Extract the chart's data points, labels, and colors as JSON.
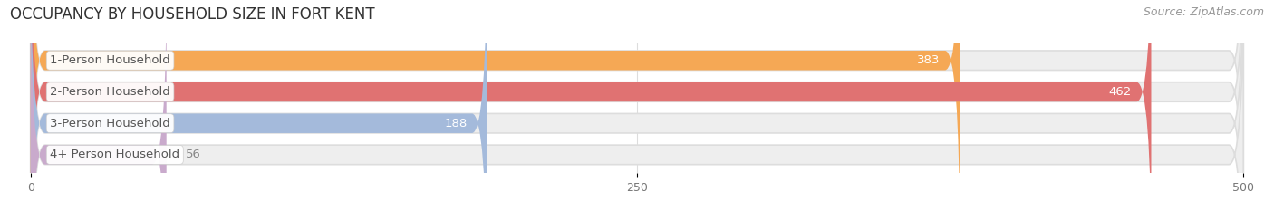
{
  "title": "OCCUPANCY BY HOUSEHOLD SIZE IN FORT KENT",
  "source": "Source: ZipAtlas.com",
  "categories": [
    "1-Person Household",
    "2-Person Household",
    "3-Person Household",
    "4+ Person Household"
  ],
  "values": [
    383,
    462,
    188,
    56
  ],
  "bar_colors": [
    "#F5A855",
    "#E07272",
    "#A4BADB",
    "#C9AACC"
  ],
  "bar_bg_color": "#EEEEEE",
  "value_color_inside": "#FFFFFF",
  "value_color_outside": "#888888",
  "xlim": [
    -10,
    510
  ],
  "xmin": 0,
  "xmax": 500,
  "xticks": [
    0,
    250,
    500
  ],
  "title_fontsize": 12,
  "source_fontsize": 9,
  "label_fontsize": 9.5,
  "value_fontsize": 9.5,
  "tick_fontsize": 9,
  "bar_height": 0.62,
  "inside_threshold": 80,
  "label_bg_color": "#FFFFFF"
}
